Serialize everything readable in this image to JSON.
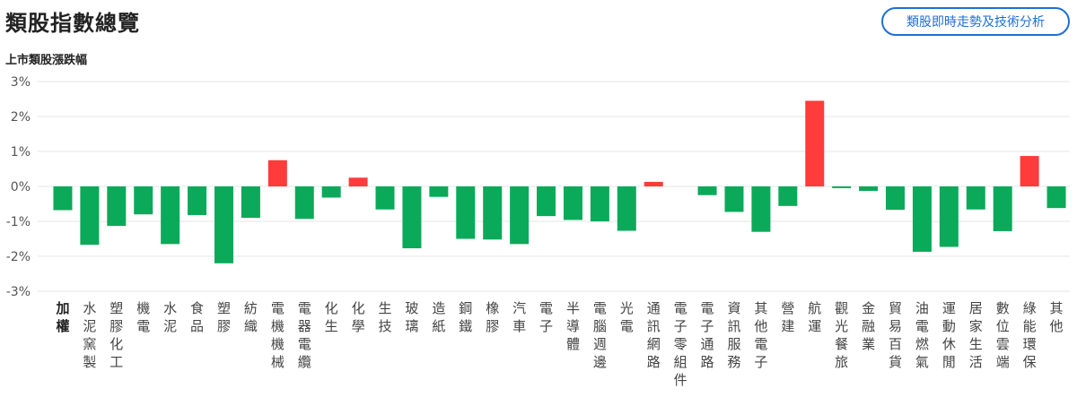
{
  "header": {
    "title": "類股指數總覽",
    "analysis_button_label": "類股即時走勢及技術分析"
  },
  "colors": {
    "up": "#ff3b3b",
    "down": "#0aaa5a",
    "grid": "#e6e6e6",
    "axis_text": "#555555"
  },
  "chart_data": {
    "type": "bar",
    "title": "上市類股漲跌幅",
    "xlabel": "",
    "ylabel": "",
    "ylim": [
      -3,
      3
    ],
    "yticks": [
      3,
      2,
      1,
      0,
      -1,
      -2,
      -3
    ],
    "ytick_labels": [
      "3%",
      "2%",
      "1%",
      "0%",
      "-1%",
      "-2%",
      "-3%"
    ],
    "grid": true,
    "categories": [
      "加權",
      "水泥窯製",
      "塑膠化工",
      "機電",
      "水泥",
      "食品",
      "塑膠",
      "紡織",
      "電機機械",
      "電器電纜",
      "化生",
      "化學",
      "生技",
      "玻璃",
      "造紙",
      "鋼鐵",
      "橡膠",
      "汽車",
      "電子",
      "半導體",
      "電腦週邊",
      "光電",
      "通訊網路",
      "電子零組件",
      "電子通路",
      "資訊服務",
      "其他電子",
      "營建",
      "航運",
      "觀光餐旅",
      "金融業",
      "貿易百貨",
      "油電燃氣",
      "運動休閒",
      "居家生活",
      "數位雲端",
      "綠能環保",
      "其他"
    ],
    "values": [
      -0.68,
      -1.67,
      -1.13,
      -0.8,
      -1.65,
      -0.82,
      -2.2,
      -0.9,
      0.75,
      -0.93,
      -0.32,
      0.25,
      -0.66,
      -1.77,
      -0.3,
      -1.5,
      -1.52,
      -1.65,
      -0.85,
      -0.96,
      -1.0,
      -1.27,
      0.13,
      0.0,
      -0.25,
      -0.73,
      -1.3,
      -0.56,
      2.45,
      -0.05,
      -0.13,
      -0.67,
      -1.87,
      -1.73,
      -0.66,
      -1.28,
      0.87,
      -0.62
    ]
  }
}
